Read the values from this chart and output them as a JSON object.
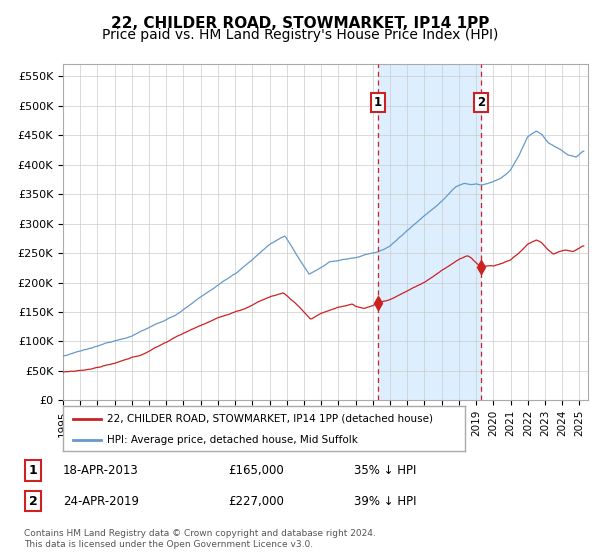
{
  "title1": "22, CHILDER ROAD, STOWMARKET, IP14 1PP",
  "title2": "Price paid vs. HM Land Registry's House Price Index (HPI)",
  "ylim": [
    0,
    570000
  ],
  "yticks": [
    0,
    50000,
    100000,
    150000,
    200000,
    250000,
    300000,
    350000,
    400000,
    450000,
    500000,
    550000
  ],
  "ytick_labels": [
    "£0",
    "£50K",
    "£100K",
    "£150K",
    "£200K",
    "£250K",
    "£300K",
    "£350K",
    "£400K",
    "£450K",
    "£500K",
    "£550K"
  ],
  "xlim_start": 1995.0,
  "xlim_end": 2025.5,
  "sale1_year": 2013.29,
  "sale1_price": 165000,
  "sale1_date": "18-APR-2013",
  "sale1_hpi_diff": "35% ↓ HPI",
  "sale2_year": 2019.29,
  "sale2_price": 227000,
  "sale2_date": "24-APR-2019",
  "sale2_hpi_diff": "39% ↓ HPI",
  "hpi_color": "#6699cc",
  "price_color": "#cc2222",
  "shade_color": "#ddeeff",
  "vline_color": "#cc2222",
  "grid_color": "#cccccc",
  "bg_color": "#ffffff",
  "legend1": "22, CHILDER ROAD, STOWMARKET, IP14 1PP (detached house)",
  "legend2": "HPI: Average price, detached house, Mid Suffolk",
  "footnote": "Contains HM Land Registry data © Crown copyright and database right 2024.\nThis data is licensed under the Open Government Licence v3.0.",
  "title_fontsize": 11,
  "subtitle_fontsize": 10
}
